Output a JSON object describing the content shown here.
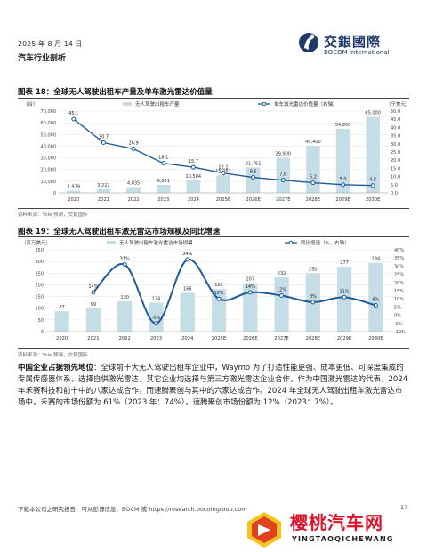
{
  "header": {
    "date": "2025 年 8 月 14 日",
    "subtitle": "汽车行业剖析",
    "logo_cn": "交銀國際",
    "logo_en": "BOCOM International"
  },
  "figure18": {
    "title": "图表 18：全球无人驾驶出租车产量及单车激光雷达价值量",
    "source": "资料来源：Yole 预测，交银国际",
    "chart_data": {
      "type": "bar",
      "categories": [
        "2020",
        "2021",
        "2022",
        "2023",
        "2024",
        "2025E",
        "2026E",
        "2027E",
        "2028E",
        "2029E",
        "2030E"
      ],
      "series": [
        {
          "name": "无人驾驶出租车产量",
          "type": "bar",
          "axis": "left",
          "color": "#c5dde6",
          "values": [
            1929,
            3222,
            4835,
            6851,
            10584,
            15082,
            21761,
            29900,
            40400,
            54900,
            65000
          ],
          "labels": [
            "1,929",
            "3,222",
            "4,835",
            "6,851",
            "10,584",
            "15,082",
            "21,761",
            "29,900",
            "40,400",
            "54,900",
            "65,000"
          ]
        },
        {
          "name": "单车激光雷达价值量（右轴）",
          "type": "line",
          "axis": "right",
          "color": "#1f5a96",
          "values": [
            45.1,
            30.7,
            26.9,
            18.1,
            15.7,
            12.1,
            9.5,
            7.8,
            6.2,
            5.0,
            4.5
          ],
          "labels": [
            "45.1",
            "30.7",
            "26.9",
            "18.1",
            "15.7",
            "12.1",
            "9.5",
            "7.8",
            "6.2",
            "5.0",
            "4.5"
          ]
        }
      ],
      "y_left_unit": "（台）",
      "y_right_unit": "（千美元）",
      "y_left_range": [
        0,
        70000
      ],
      "y_left_ticks": [
        "0",
        "10,000",
        "20,000",
        "30,000",
        "40,000",
        "50,000",
        "60,000",
        "70,000"
      ],
      "y_right_range": [
        0,
        50
      ],
      "y_right_ticks": [
        "0.0",
        "5.0",
        "10.0",
        "15.0",
        "20.0",
        "25.0",
        "30.0",
        "35.0",
        "40.0",
        "45.0",
        "50.0"
      ],
      "grid": true,
      "legend_position": "top"
    }
  },
  "figure19": {
    "title": "图表 19：全球无人驾驶出租车激光雷达市场规模及同比增速",
    "source": "资料来源：Yole 预测，交银国际",
    "chart_data": {
      "type": "bar",
      "categories": [
        "2020",
        "2021",
        "2022",
        "2023",
        "2024",
        "2025E",
        "2026E",
        "2027E",
        "2028E",
        "2029E",
        "2030E"
      ],
      "series": [
        {
          "name": "无人驾驶出租车激光雷达市场规模",
          "type": "bar",
          "axis": "left",
          "color": "#c5dde6",
          "values": [
            87,
            99,
            130,
            124,
            166,
            182,
            207,
            232,
            250,
            277,
            294
          ],
          "labels": [
            "87",
            "99",
            "130",
            "124",
            "166",
            "182",
            "207",
            "232",
            "250",
            "277",
            "294"
          ]
        },
        {
          "name": "同比增速（%，右轴）",
          "type": "line",
          "axis": "right",
          "color": "#1f5a96",
          "values": [
            null,
            14,
            31,
            -5,
            34,
            10,
            14,
            12,
            8,
            11,
            6
          ],
          "labels": [
            "",
            "14%",
            "31%",
            "-5%",
            "34%",
            "10%",
            "14%",
            "12%",
            "8%",
            "11%",
            "6%"
          ]
        }
      ],
      "y_left_unit": "（百万美元）",
      "y_left_range": [
        0,
        350
      ],
      "y_left_ticks": [
        "0",
        "50",
        "100",
        "150",
        "200",
        "250",
        "300",
        "350"
      ],
      "y_right_range": [
        -10,
        40
      ],
      "y_right_ticks": [
        "-10%",
        "-5%",
        "0%",
        "5%",
        "10%",
        "15%",
        "20%",
        "25%",
        "30%",
        "35%",
        "40%"
      ],
      "grid": true,
      "legend_position": "top"
    }
  },
  "body": {
    "lead": "中国企业占据领先地位",
    "text": "：全球前十大无人驾驶出租车企业中，Waymo 为了打造性能更强、成本更低、可深度集成的专属传感器体系，选择自供激光雷达，其它企业均选择与第三方激光雷达企业合作，作为中国激光雷达的代表，2024 年禾赛科技和前十中的八家达成合作，而速腾聚创与其中的六家达成合作。2024 年全球无人驾驶出租车激光雷达市场中，禾赛的市场份额为 61%（2023 年：74%），速腾聚创市场份额为 12%（2023：7%）。"
  },
  "footer": {
    "text": "下载本公司之研究报告，可从彭博信息：BOCM 或 https://research.bocomgroup.com",
    "page": "17"
  },
  "watermark": {
    "cn": "樱桃汽车网",
    "en": "YINGTAOQICHEWANG"
  }
}
